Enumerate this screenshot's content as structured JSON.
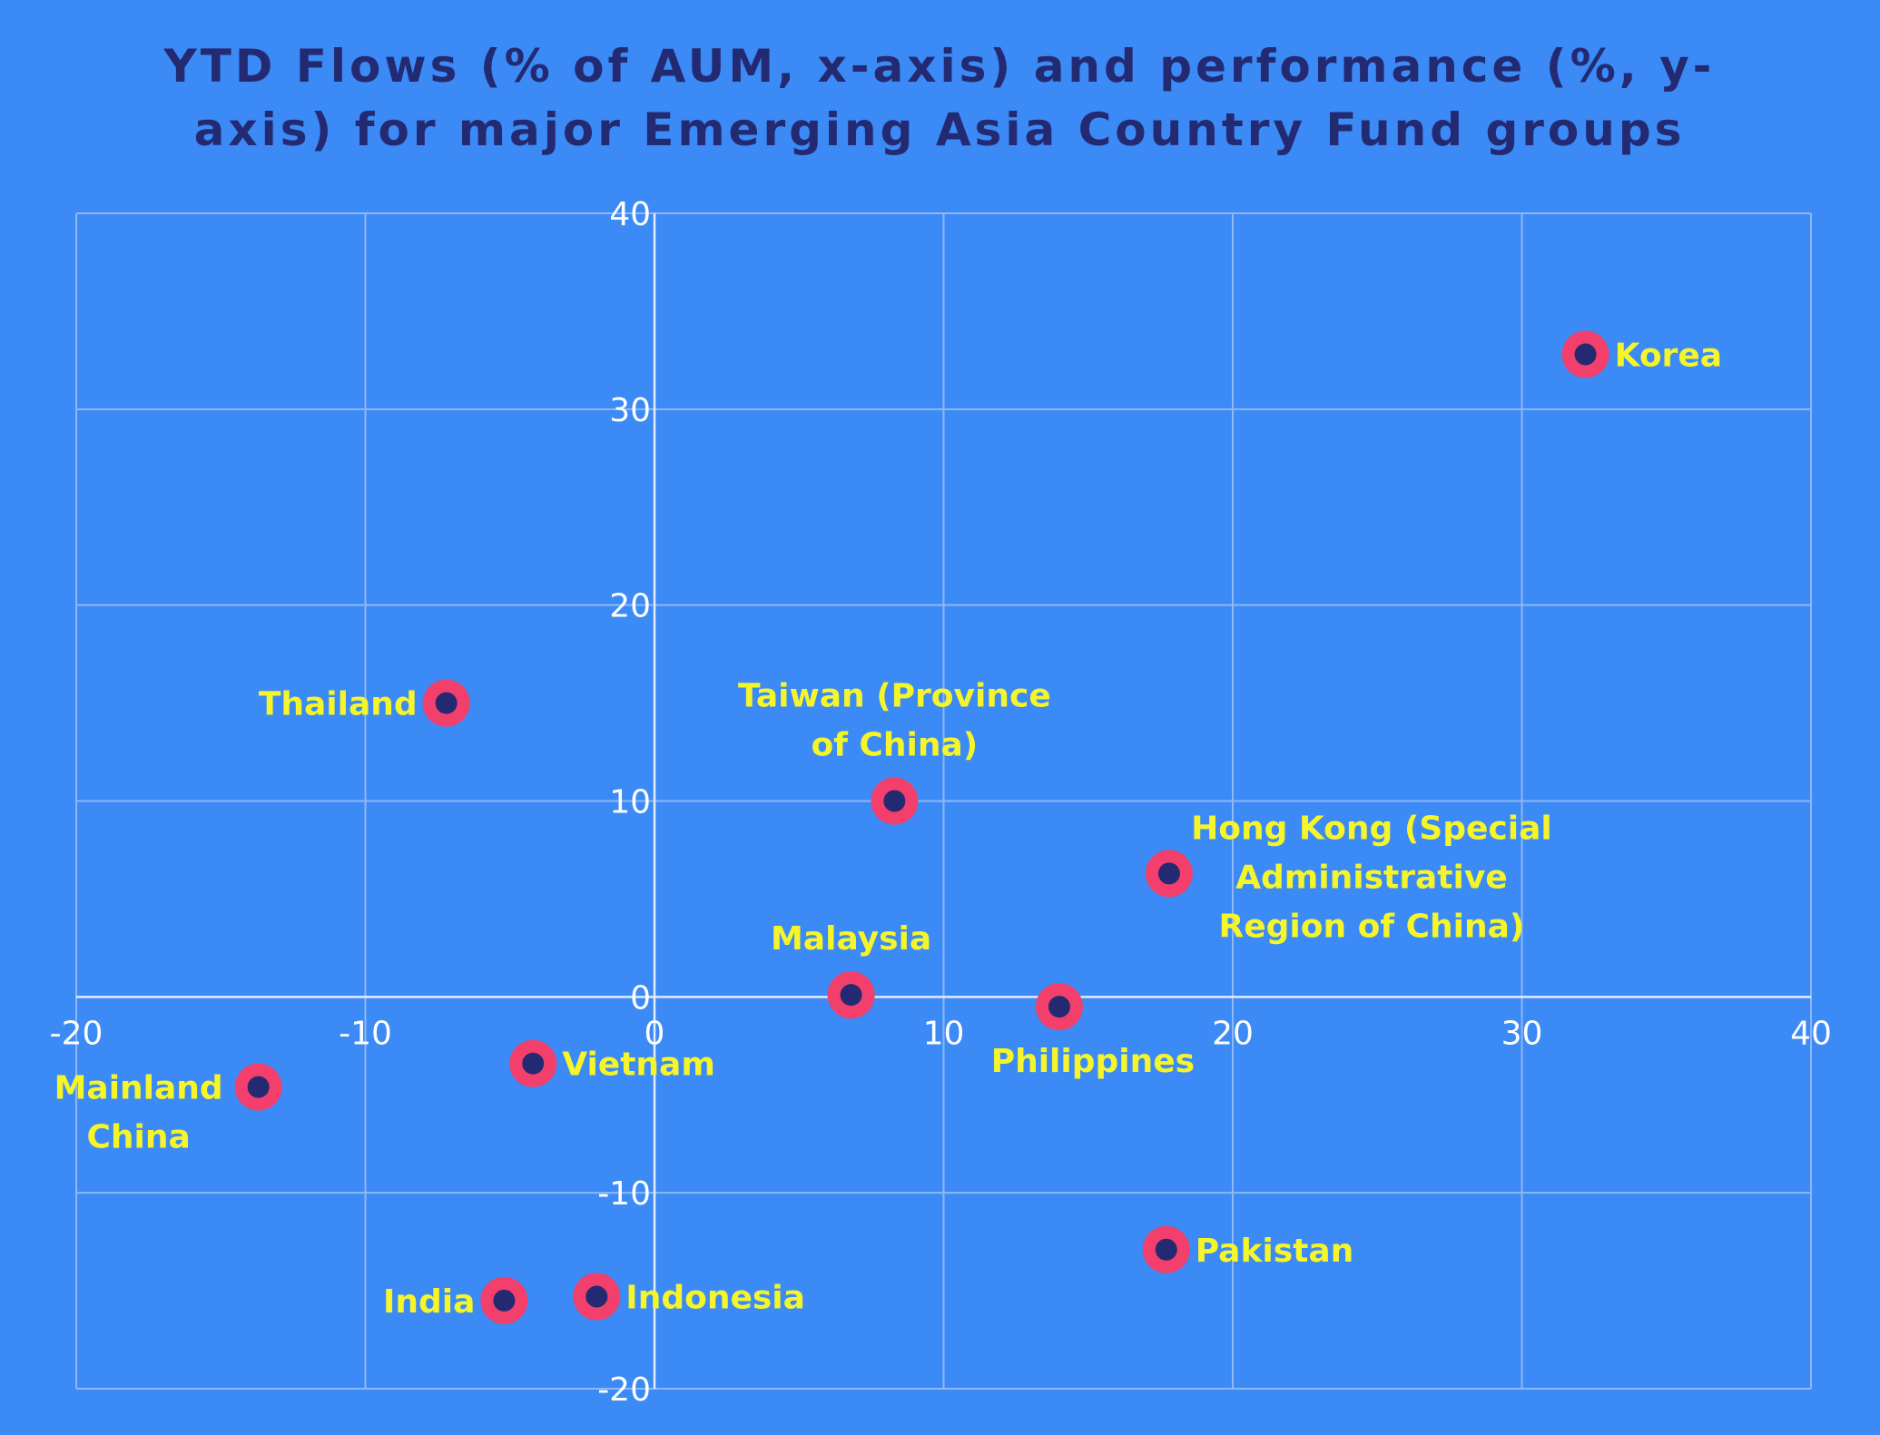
{
  "colors": {
    "background": "#3b8af5",
    "title": "#232a72",
    "grid": "#8fb7f5",
    "axis": "#e4ecfb",
    "tick_label": "#ffffff",
    "point_label": "#f5f52a",
    "marker_outer": "#f23f6b",
    "marker_inner": "#232a72"
  },
  "chart_data": {
    "type": "scatter",
    "title_lines": [
      "YTD Flows (% of AUM, x-axis) and performance (%, y-",
      "axis) for major Emerging Asia Country Fund groups"
    ],
    "xlim": [
      -20,
      40
    ],
    "ylim": [
      -20,
      40
    ],
    "x_ticks": [
      -20,
      -10,
      0,
      10,
      20,
      30,
      40
    ],
    "y_ticks": [
      -20,
      -10,
      0,
      10,
      20,
      30,
      40
    ],
    "grid": true,
    "points": [
      {
        "name": "Korea",
        "x": 32.2,
        "y": 32.8,
        "label_lines": [
          "Korea"
        ],
        "label_pos": "right"
      },
      {
        "name": "Thailand",
        "x": -7.2,
        "y": 15.0,
        "label_lines": [
          "Thailand"
        ],
        "label_pos": "left"
      },
      {
        "name": "Taiwan (Province of China)",
        "x": 8.3,
        "y": 10.0,
        "label_lines": [
          "Taiwan (Province",
          "of China)"
        ],
        "label_pos": "top"
      },
      {
        "name": "Hong Kong (Special Administrative Region of China)",
        "x": 17.8,
        "y": 6.3,
        "label_lines": [
          "Hong Kong (Special",
          "Administrative",
          "Region of China)"
        ],
        "label_pos": "right-block"
      },
      {
        "name": "Malaysia",
        "x": 6.8,
        "y": 0.1,
        "label_lines": [
          "Malaysia"
        ],
        "label_pos": "top"
      },
      {
        "name": "Philippines",
        "x": 14.0,
        "y": -0.5,
        "label_lines": [
          "Philippines"
        ],
        "label_pos": "below-left"
      },
      {
        "name": "Vietnam",
        "x": -4.2,
        "y": -3.4,
        "label_lines": [
          "Vietnam"
        ],
        "label_pos": "right"
      },
      {
        "name": "Mainland China",
        "x": -13.7,
        "y": -4.6,
        "label_lines": [
          "Mainland",
          "China"
        ],
        "label_pos": "left-block"
      },
      {
        "name": "Pakistan",
        "x": 17.7,
        "y": -12.9,
        "label_lines": [
          "Pakistan"
        ],
        "label_pos": "right"
      },
      {
        "name": "India",
        "x": -5.2,
        "y": -15.5,
        "label_lines": [
          "India"
        ],
        "label_pos": "left"
      },
      {
        "name": "Indonesia",
        "x": -2.0,
        "y": -15.3,
        "label_lines": [
          "Indonesia"
        ],
        "label_pos": "right"
      }
    ]
  }
}
